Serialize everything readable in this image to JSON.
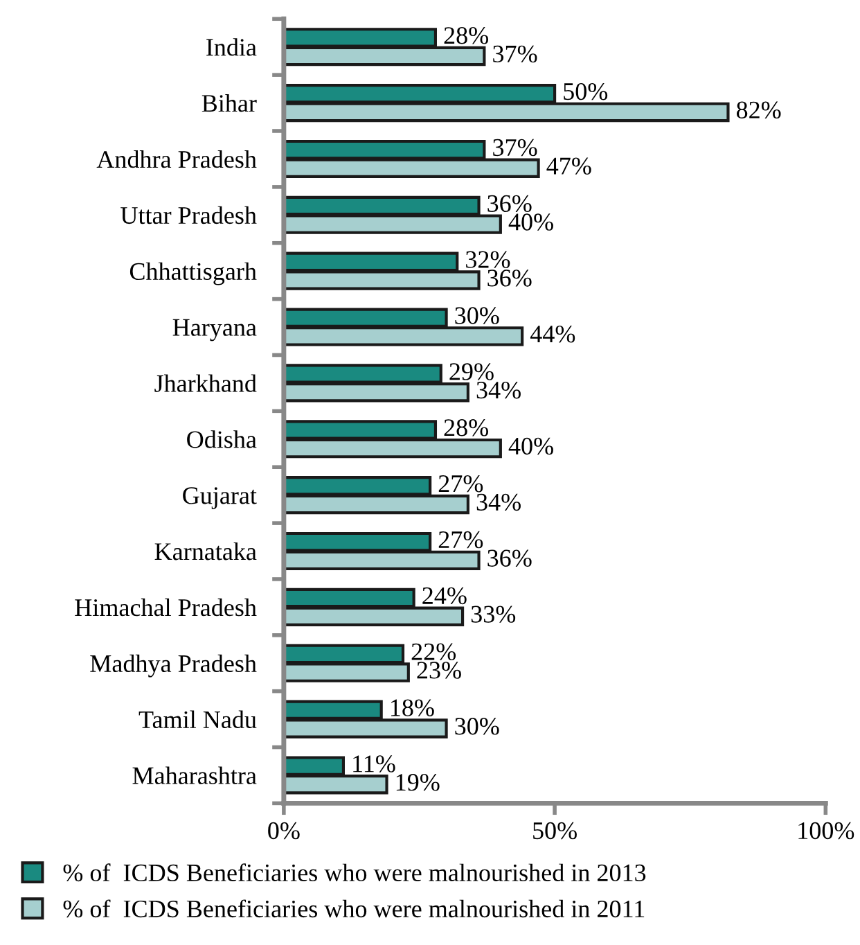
{
  "chart_data": {
    "type": "bar",
    "orientation": "horizontal",
    "categories": [
      "India",
      "Bihar",
      "Andhra Pradesh",
      "Uttar Pradesh",
      "Chhattisgarh",
      "Haryana",
      "Jharkhand",
      "Odisha",
      "Gujarat",
      "Karnataka",
      "Himachal Pradesh",
      "Madhya Pradesh",
      "Tamil Nadu",
      "Maharashtra"
    ],
    "series": [
      {
        "name": "% of  ICDS Beneficiaries who were malnourished in 2013",
        "color": "#1a8a80",
        "values": [
          28,
          50,
          37,
          36,
          32,
          30,
          29,
          28,
          27,
          27,
          24,
          22,
          18,
          11
        ],
        "value_labels": [
          "28%",
          "50%",
          "37%",
          "36%",
          "32%",
          "30%",
          "29%",
          "28%",
          "27%",
          "27%",
          "24%",
          "22%",
          "18%",
          "11%"
        ]
      },
      {
        "name": "% of  ICDS Beneficiaries who were malnourished in 2011",
        "color": "#a6cfcf",
        "values": [
          37,
          82,
          47,
          40,
          36,
          44,
          34,
          40,
          34,
          36,
          33,
          23,
          30,
          19
        ],
        "value_labels": [
          "37%",
          "82%",
          "47%",
          "40%",
          "36%",
          "44%",
          "34%",
          "40%",
          "34%",
          "36%",
          "33%",
          "23%",
          "30%",
          "19%"
        ]
      }
    ],
    "xlim": [
      0,
      100
    ],
    "xticks": [
      {
        "value": 0,
        "label": "0%"
      },
      {
        "value": 50,
        "label": "50%"
      },
      {
        "value": 100,
        "label": "100%"
      }
    ],
    "grid": false,
    "legend": "bottom"
  }
}
